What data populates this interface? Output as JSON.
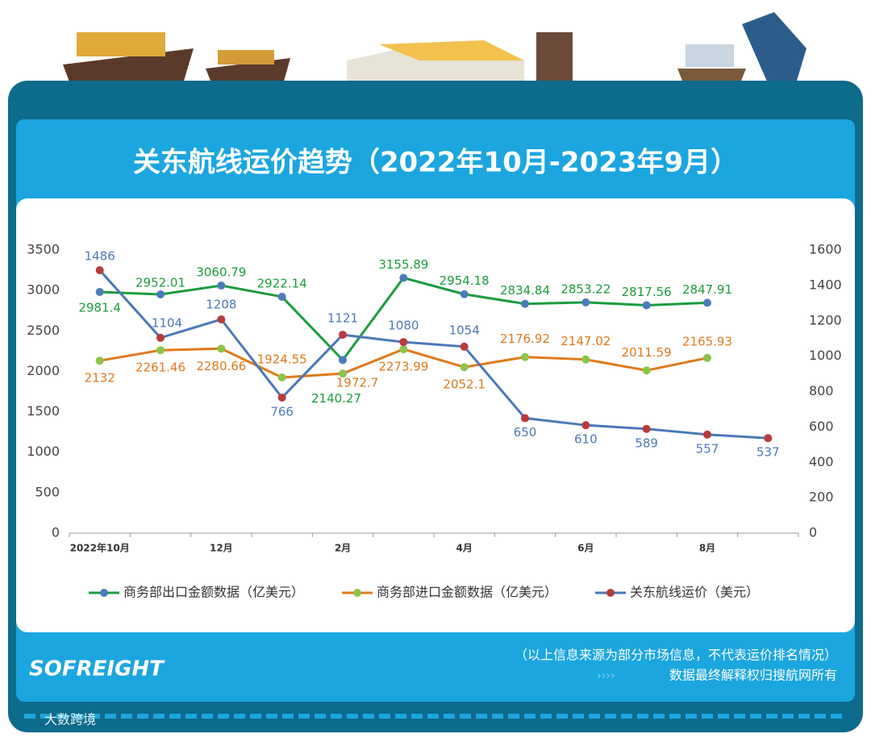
{
  "chart_data": {
    "type": "line",
    "title": "关东航线运价趋势（2022年10月-2023年9月）",
    "categories": [
      "2022年10月",
      null,
      "12月",
      null,
      "2月",
      null,
      "4月",
      null,
      "6月",
      null,
      "8月",
      null
    ],
    "series": [
      {
        "name": "商务部出口金额数据（亿美元）",
        "color": "#1a9c3c",
        "marker_color": "#4a7bbd",
        "values": [
          2981.4,
          2952.01,
          3060.79,
          2922.14,
          2140.27,
          3155.89,
          2954.18,
          2834.84,
          2853.22,
          2817.56,
          2847.91,
          null
        ]
      },
      {
        "name": "商务部进口金额数据（亿美元）",
        "color": "#e0791c",
        "marker_color": "#8cc34a",
        "values": [
          2132,
          2261.46,
          2280.66,
          1924.55,
          1972.7,
          2273.99,
          2052.1,
          2176.92,
          2147.02,
          2011.59,
          2165.93,
          null
        ]
      },
      {
        "name": "关东航线运价（美元）",
        "color": "#4a78b8",
        "marker_color": "#b83a3c",
        "axis": "y2",
        "values": [
          1486,
          1104,
          1208,
          766,
          1121,
          1080,
          1054,
          650,
          610,
          589,
          557,
          537
        ]
      }
    ],
    "ylim": [
      0,
      3500
    ],
    "yticks": [
      0,
      500,
      1000,
      1500,
      2000,
      2500,
      3000,
      3500
    ],
    "y2lim": [
      0,
      1600
    ],
    "y2ticks": [
      0,
      200,
      400,
      600,
      800,
      1000,
      1200,
      1400,
      1600
    ],
    "legend": "bottom"
  },
  "footer": {
    "note": "（以上信息来源为部分市场信息，不代表运价排名情况）",
    "rights": "数据最终解释权归搜航网所有"
  },
  "logo": "SOFREIGHT",
  "watermark": "大数跨境"
}
